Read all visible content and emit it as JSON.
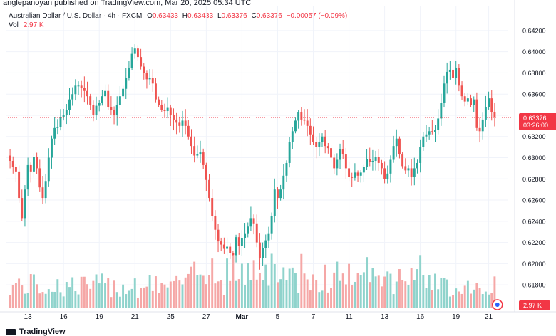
{
  "header": {
    "publisher": "anglepanoyan published on TradingView.com, Mar 20, 2025 05:34 UTC",
    "symbol": "Australian Dollar / U.S. Dollar · 4h · FXCM",
    "o_label": "O",
    "o": "0.63433",
    "h_label": "H",
    "h": "0.63433",
    "l_label": "L",
    "l": "0.63376",
    "c_label": "C",
    "c": "0.63376",
    "change": "−0.00057 (−0.09%)",
    "vol_label": "Vol",
    "vol": "2.97 K"
  },
  "price_axis": {
    "current_price": "0.63376",
    "countdown": "03:26:00",
    "volume_tag": "2.97 K"
  },
  "footer": {
    "brand": "TradingView"
  },
  "colors": {
    "up": "#26a69a",
    "down": "#ef5350",
    "up_vol": "#8fd3cc",
    "down_vol": "#f5a7a6",
    "tag": "#f23645",
    "grid": "#f0f3fa"
  },
  "chart_data": {
    "type": "candlestick",
    "timeframe": "4h",
    "y_ticks": [
      0.618,
      0.62,
      0.622,
      0.624,
      0.626,
      0.628,
      0.63,
      0.632,
      0.634,
      0.636,
      0.638,
      0.64,
      0.642
    ],
    "y_tick_labels": [
      "0.61800",
      "0.62000",
      "0.62200",
      "0.62400",
      "0.62600",
      "0.62800",
      "0.63000",
      "0.63200",
      "0.63400",
      "0.63600",
      "0.63800",
      "0.64000",
      "0.64200"
    ],
    "ylim": [
      0.6168,
      0.643
    ],
    "x_tick_labels": [
      "13",
      "16",
      "19",
      "21",
      "25",
      "27",
      "Mar",
      "5",
      "7",
      "11",
      "13",
      "16",
      "19",
      "21"
    ],
    "x_tick_index": [
      6,
      18,
      30,
      42,
      54,
      66,
      78,
      90,
      102,
      114,
      126,
      138,
      150,
      161
    ],
    "close": [
      0.6297,
      0.6291,
      0.6287,
      0.6262,
      0.6243,
      0.627,
      0.6293,
      0.6287,
      0.6301,
      0.629,
      0.6272,
      0.6262,
      0.6278,
      0.63,
      0.6318,
      0.6328,
      0.6329,
      0.6338,
      0.634,
      0.6345,
      0.6355,
      0.636,
      0.6368,
      0.6368,
      0.6366,
      0.6363,
      0.6358,
      0.635,
      0.634,
      0.6349,
      0.6352,
      0.6358,
      0.6363,
      0.6348,
      0.6345,
      0.634,
      0.635,
      0.6358,
      0.6365,
      0.6375,
      0.6385,
      0.6398,
      0.6403,
      0.6395,
      0.6386,
      0.638,
      0.6374,
      0.6375,
      0.637,
      0.6355,
      0.635,
      0.6345,
      0.6344,
      0.6347,
      0.634,
      0.6336,
      0.6333,
      0.633,
      0.6335,
      0.633,
      0.632,
      0.6311,
      0.6302,
      0.6303,
      0.6305,
      0.6293,
      0.6279,
      0.6262,
      0.6245,
      0.6232,
      0.6221,
      0.6218,
      0.6214,
      0.6216,
      0.621,
      0.6208,
      0.6225,
      0.6217,
      0.6224,
      0.6228,
      0.6235,
      0.6243,
      0.6238,
      0.622,
      0.6205,
      0.6215,
      0.6222,
      0.6228,
      0.6245,
      0.627,
      0.6262,
      0.627,
      0.6283,
      0.6295,
      0.6315,
      0.6325,
      0.6335,
      0.6343,
      0.6336,
      0.6335,
      0.633,
      0.6322,
      0.6315,
      0.631,
      0.6315,
      0.632,
      0.6311,
      0.6309,
      0.63,
      0.629,
      0.6298,
      0.6308,
      0.6303,
      0.629,
      0.6282,
      0.6281,
      0.6286,
      0.6283,
      0.6286,
      0.6291,
      0.6299,
      0.6296,
      0.6297,
      0.6301,
      0.6295,
      0.629,
      0.628,
      0.6285,
      0.6298,
      0.6311,
      0.6318,
      0.6303,
      0.6292,
      0.6288,
      0.629,
      0.6282,
      0.629,
      0.6295,
      0.631,
      0.632,
      0.6322,
      0.6325,
      0.6324,
      0.6326,
      0.6337,
      0.6352,
      0.637,
      0.6381,
      0.6383,
      0.6375,
      0.6385,
      0.6368,
      0.6358,
      0.6353,
      0.6356,
      0.635,
      0.6355,
      0.6328,
      0.6325,
      0.6336,
      0.6348,
      0.6356,
      0.6343,
      0.6338
    ],
    "open_first": 0.6302
  }
}
